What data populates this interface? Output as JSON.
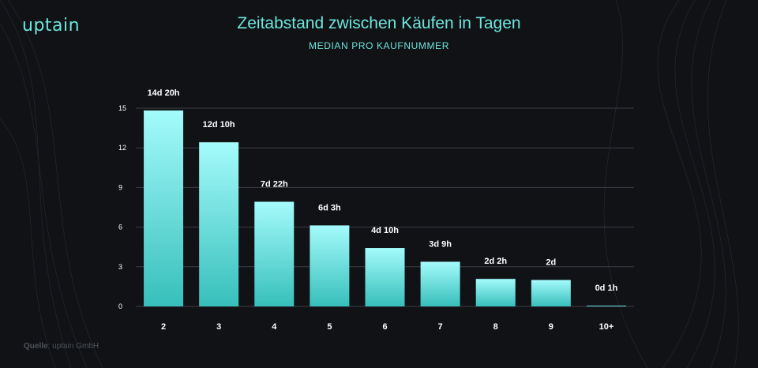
{
  "brand": {
    "logo_text": "uptain"
  },
  "header": {
    "title": "Zeitabstand zwischen Käufen in Tagen",
    "subtitle": "MEDIAN PRO KAUFNUMMER"
  },
  "footer": {
    "source_label": "Quelle",
    "source_sep": ":",
    "source_value": " uptain GmbH"
  },
  "colors": {
    "background": "#101216",
    "accent": "#6ee6dc",
    "bar_top": "#a4fbfb",
    "bar_bottom": "#37bfbb",
    "grid": "#3b3e44",
    "tick": "#ffffff"
  },
  "chart_data": {
    "type": "bar",
    "title": "Zeitabstand zwischen Käufen in Tagen",
    "subtitle": "MEDIAN PRO KAUFNUMMER",
    "xlabel": "",
    "ylabel": "",
    "categories": [
      "2",
      "3",
      "4",
      "5",
      "6",
      "7",
      "8",
      "9",
      "10+"
    ],
    "values": [
      14.83,
      12.42,
      7.92,
      6.13,
      4.42,
      3.38,
      2.08,
      2.0,
      0.04
    ],
    "data_labels": [
      "14d 20h",
      "12d 10h",
      "7d 22h",
      "6d 3h",
      "4d 10h",
      "3d 9h",
      "2d 2h",
      "2d",
      "0d 1h"
    ],
    "ylim": [
      0,
      15
    ],
    "yticks": [
      0,
      3,
      6,
      9,
      12,
      15
    ],
    "grid": true
  }
}
